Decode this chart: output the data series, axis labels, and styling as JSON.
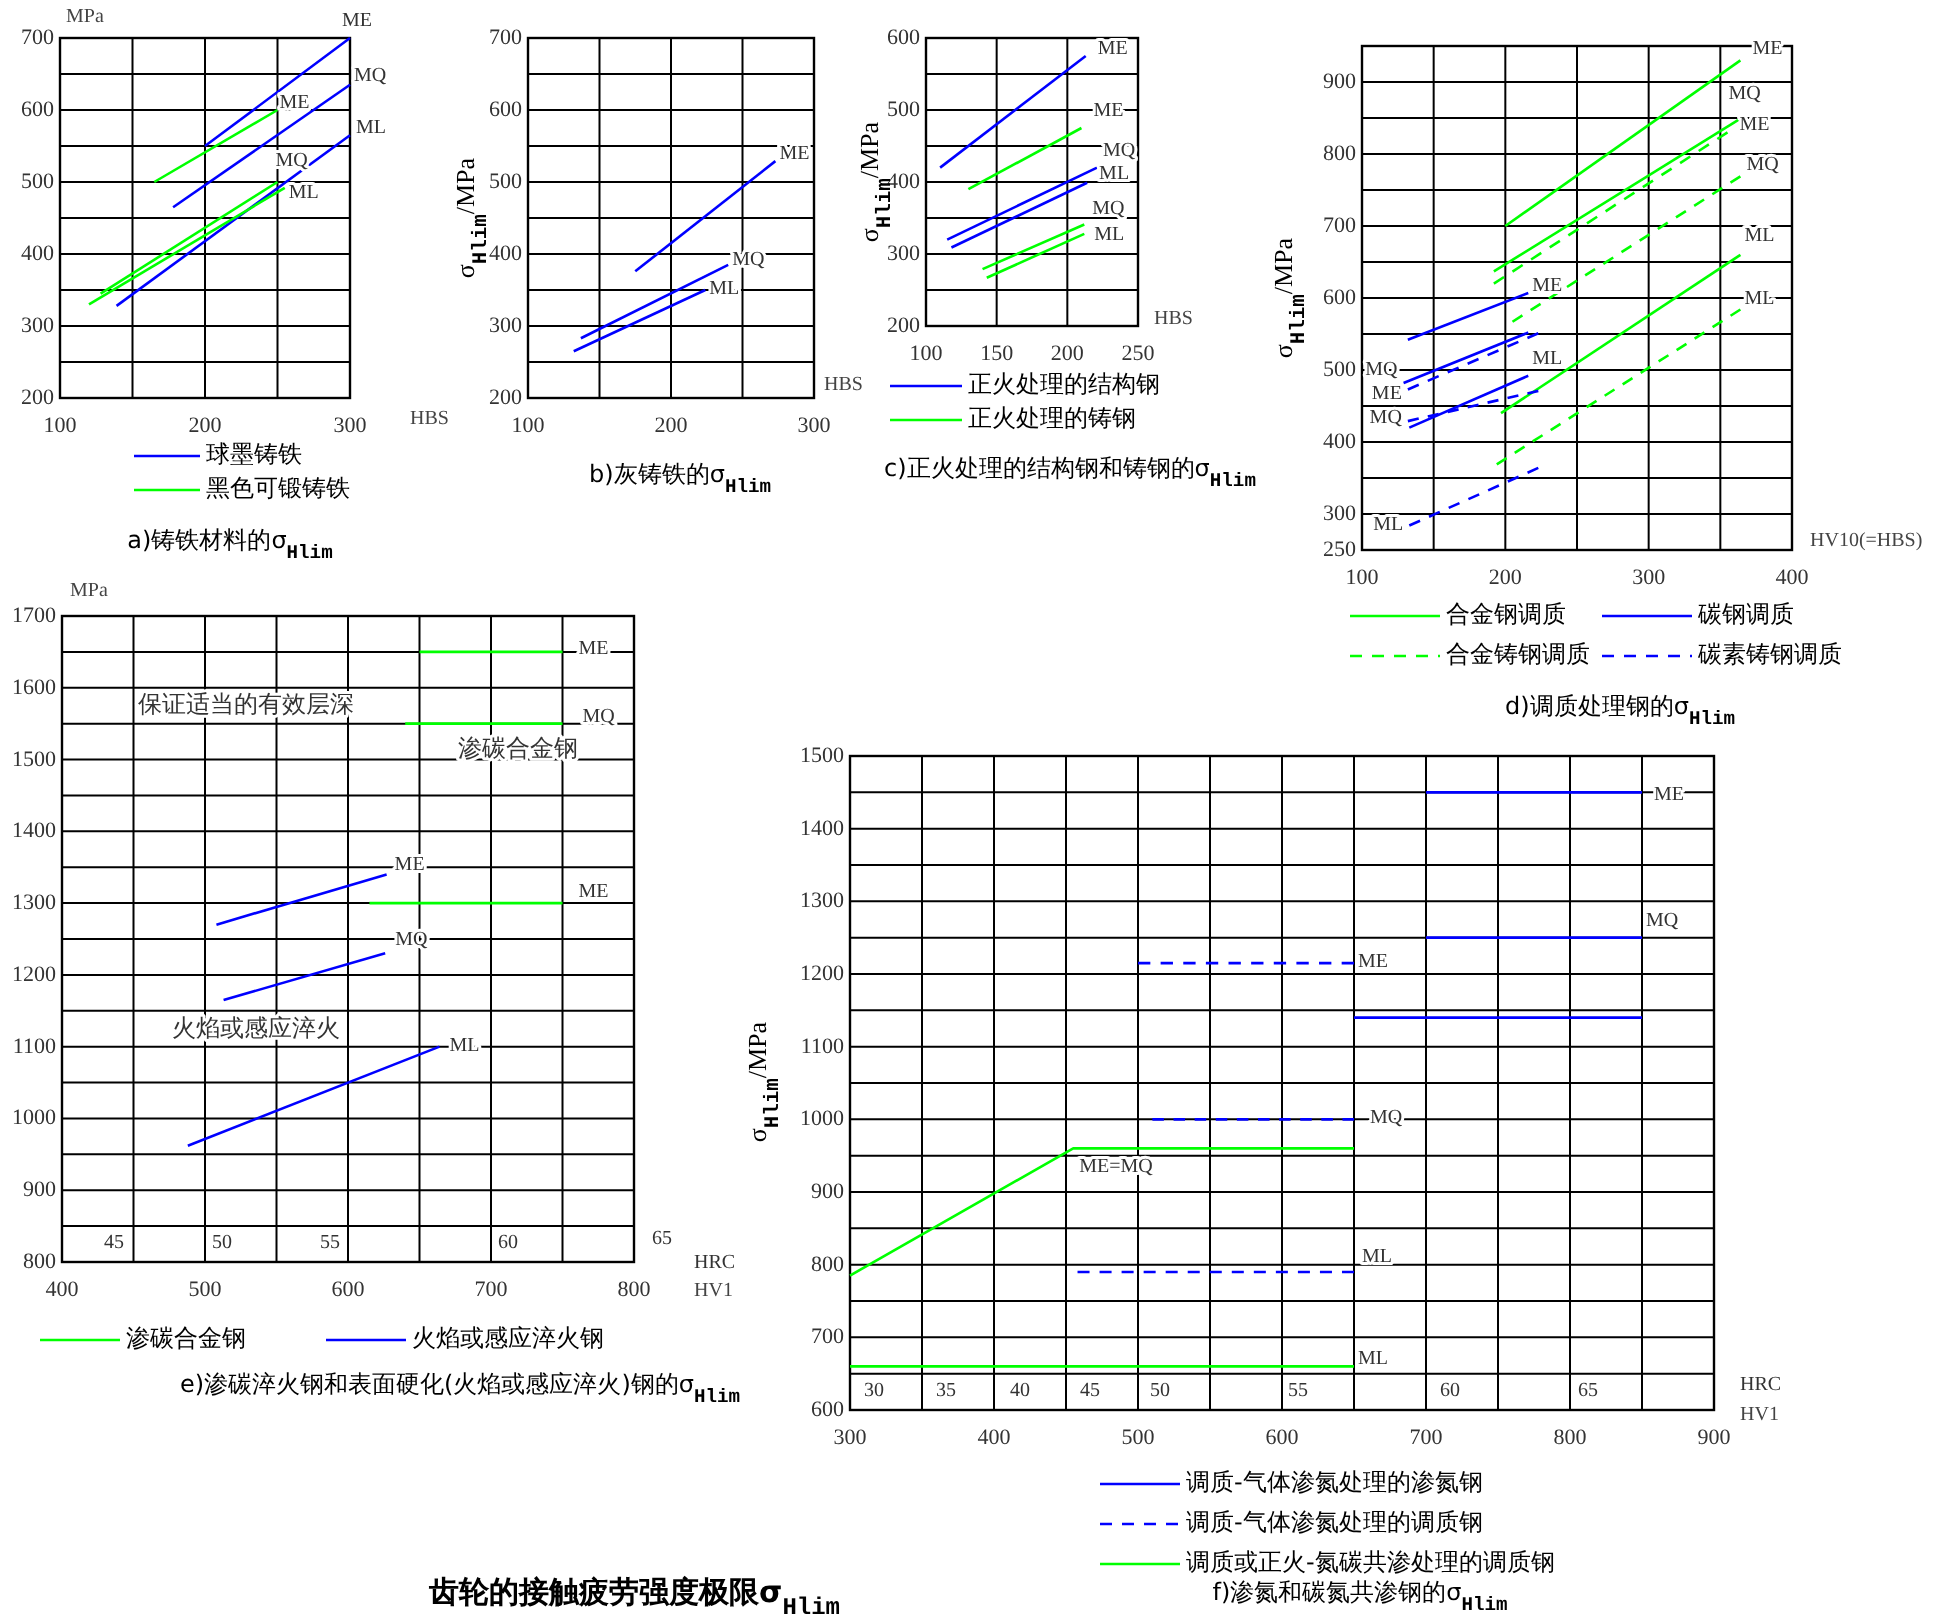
{
  "chart_data": [
    {
      "type": "line",
      "title": "a)铸铁材料的σ$_{Hlim}$",
      "xlabel": "HBS",
      "ylabel": "MPa",
      "xlim": [
        100,
        300
      ],
      "ylim": [
        200,
        700
      ],
      "xticks": [
        100,
        {
          "value": 150,
          "label": null
        },
        200,
        {
          "value": 250,
          "label": null
        },
        300
      ],
      "yticks": [
        200,
        {
          "value": 250,
          "label": null
        },
        300,
        {
          "value": 350,
          "label": null
        },
        400,
        {
          "value": 450,
          "label": null
        },
        500,
        {
          "value": 550,
          "label": null
        },
        600,
        {
          "value": 650,
          "label": null
        },
        700
      ],
      "grid": true,
      "legend": "bottom",
      "series": [
        {
          "name": "球墨铸铁",
          "color": "#0000ff",
          "x": [
            200,
            300
          ],
          "values": [
            550,
            700
          ]
        },
        {
          "color": "#0000ff",
          "x": [
            178,
            300
          ],
          "values": [
            465,
            635
          ]
        },
        {
          "color": "#0000ff",
          "x": [
            139,
            300
          ],
          "values": [
            328,
            565
          ]
        },
        {
          "name": "黑色可锻铸铁",
          "color": "#00ff00",
          "x": [
            165,
            250
          ],
          "values": [
            500,
            600
          ]
        },
        {
          "color": "#00ff00",
          "x": [
            128,
            250
          ],
          "values": [
            345,
            500
          ]
        },
        {
          "color": "#00ff00",
          "x": [
            120,
            255
          ],
          "values": [
            330,
            492
          ]
        }
      ],
      "annotations": [
        "ME",
        "MQ",
        "ML",
        "ME",
        "MQ",
        "ML"
      ]
    },
    {
      "type": "line",
      "title": "b)灰铸铁的σ$_{Hlim}$",
      "xlabel": "HBS",
      "ylabel": "σ$_{Hlim}$/MPa",
      "xlim": [
        100,
        300
      ],
      "ylim": [
        200,
        700
      ],
      "xticks": [
        100,
        {
          "value": 150,
          "label": null
        },
        200,
        {
          "value": 250,
          "label": null
        },
        300
      ],
      "yticks": [
        200,
        {
          "value": 250,
          "label": null
        },
        300,
        {
          "value": 350,
          "label": null
        },
        400,
        {
          "value": 450,
          "label": null
        },
        500,
        {
          "value": 550,
          "label": null
        },
        600,
        {
          "value": 650,
          "label": null
        },
        700
      ],
      "grid": true,
      "series": [
        {
          "color": "#0000ff",
          "x": [
            175,
            273
          ],
          "values": [
            376,
            529
          ]
        },
        {
          "color": "#0000ff",
          "x": [
            137,
            240
          ],
          "values": [
            283,
            385
          ]
        },
        {
          "color": "#0000ff",
          "x": [
            132,
            224
          ],
          "values": [
            265,
            350
          ]
        }
      ],
      "annotations": [
        "ME",
        "MQ",
        "ML"
      ]
    },
    {
      "type": "line",
      "title": "c)正火处理的结构钢和铸钢的σ$_{Hlim}$",
      "xlabel": "HBS",
      "ylabel": "σ$_{Hlim}$/MPa",
      "xlim": [
        100,
        250
      ],
      "ylim": [
        200,
        600
      ],
      "xticks": [
        100,
        150,
        200,
        250
      ],
      "yticks": [
        200,
        {
          "value": 250,
          "label": null
        },
        300,
        {
          "value": 350,
          "label": null
        },
        400,
        {
          "value": 450,
          "label": null
        },
        500,
        {
          "value": 550,
          "label": null
        },
        600
      ],
      "grid": true,
      "legend": "bottom",
      "series": [
        {
          "name": "正火处理的结构钢",
          "color": "#0000ff",
          "x": [
            110,
            213
          ],
          "values": [
            420,
            575
          ]
        },
        {
          "color": "#0000ff",
          "x": [
            115,
            221
          ],
          "values": [
            320,
            420
          ]
        },
        {
          "color": "#0000ff",
          "x": [
            118,
            214
          ],
          "values": [
            309,
            399
          ]
        },
        {
          "name": "正火处理的铸钢",
          "color": "#00ff00",
          "x": [
            130,
            210
          ],
          "values": [
            390,
            475
          ]
        },
        {
          "color": "#00ff00",
          "x": [
            140,
            212
          ],
          "values": [
            279,
            341
          ]
        },
        {
          "color": "#00ff00",
          "x": [
            143,
            212
          ],
          "values": [
            267,
            328
          ]
        }
      ],
      "annotations": [
        "ME",
        "ME",
        "MQ",
        "ML",
        "MQ",
        "ML"
      ]
    },
    {
      "type": "line",
      "title": "d)调质处理钢的σ$_{Hlim}$",
      "xlabel": "HV10(=HBS)",
      "ylabel": "σ$_{Hlim}$/MPa",
      "xlim": [
        100,
        400
      ],
      "ylim": [
        250,
        950
      ],
      "xticks": [
        100,
        {
          "value": 150,
          "label": null
        },
        200,
        {
          "value": 250,
          "label": null
        },
        300,
        {
          "value": 350,
          "label": null
        },
        400
      ],
      "yticks": [
        250,
        300,
        {
          "value": 350,
          "label": null
        },
        400,
        {
          "value": 450,
          "label": null
        },
        500,
        {
          "value": 550,
          "label": null
        },
        600,
        {
          "value": 650,
          "label": null
        },
        700,
        {
          "value": 750,
          "label": null
        },
        800,
        {
          "value": 850,
          "label": null
        },
        900,
        {
          "value": 950,
          "label": null
        }
      ],
      "grid": true,
      "legend": "bottom",
      "series": [
        {
          "name": "合金钢调质",
          "color": "#00ff00",
          "x": [
            200,
            364
          ],
          "values": [
            700,
            930
          ]
        },
        {
          "name": "碳钢调质",
          "color": "#0000ff",
          "x": [
            132,
            216
          ],
          "values": [
            542,
            607
          ]
        },
        {
          "name": "合金铸钢调质",
          "color": "#00ff00",
          "line_style": "dashed",
          "x": [
            192,
            355
          ],
          "values": [
            620,
            830
          ]
        },
        {
          "name": "碳素铸钢调质",
          "color": "#0000ff",
          "line_style": "dashed",
          "x": [
            132,
            223
          ],
          "values": [
            473,
            551
          ]
        },
        {
          "color": "#00ff00",
          "x": [
            192,
            364
          ],
          "values": [
            637,
            849
          ]
        },
        {
          "color": "#00ff00",
          "x": [
            197,
            364
          ],
          "values": [
            440,
            660
          ]
        },
        {
          "color": "#00ff00",
          "line_style": "dashed",
          "x": [
            205,
            364
          ],
          "values": [
            567,
            769
          ]
        },
        {
          "color": "#00ff00",
          "line_style": "dashed",
          "x": [
            194,
            364
          ],
          "values": [
            369,
            584
          ]
        },
        {
          "color": "#0000ff",
          "x": [
            129,
            216
          ],
          "values": [
            482,
            552
          ]
        },
        {
          "color": "#0000ff",
          "x": [
            133,
            216
          ],
          "values": [
            420,
            492
          ]
        },
        {
          "color": "#0000ff",
          "line_style": "dashed",
          "x": [
            132,
            223
          ],
          "values": [
            429,
            471
          ]
        },
        {
          "color": "#0000ff",
          "line_style": "dashed",
          "x": [
            133,
            223
          ],
          "values": [
            284,
            364
          ]
        }
      ],
      "annotations": [
        "ME",
        "MQ",
        "ME",
        "MQ",
        "ML",
        "ML",
        "ME",
        "ML",
        "MQ",
        "ME",
        "MQ",
        "ML"
      ]
    },
    {
      "type": "line",
      "title": "e)渗碳淬火钢和表面硬化(火焰或感应淬火)钢的σ$_{Hlim}$",
      "xlabel": "HV1",
      "ylabel": "MPa",
      "xlim": [
        400,
        800
      ],
      "ylim": [
        800,
        1700
      ],
      "xticks": [
        400,
        {
          "value": 450,
          "label": null
        },
        500,
        {
          "value": 550,
          "label": null
        },
        600,
        {
          "value": 650,
          "label": null
        },
        700,
        {
          "value": 750,
          "label": null
        },
        800
      ],
      "yticks": [
        800,
        {
          "value": 850,
          "label": null
        },
        900,
        {
          "value": 950,
          "label": null
        },
        1000,
        {
          "value": 1050,
          "label": null
        },
        1100,
        {
          "value": 1150,
          "label": null
        },
        1200,
        {
          "value": 1250,
          "label": null
        },
        1300,
        {
          "value": 1350,
          "label": null
        },
        1400,
        {
          "value": 1450,
          "label": null
        },
        1500,
        {
          "value": 1550,
          "label": null
        },
        1600,
        {
          "value": 1650,
          "label": null
        },
        1700
      ],
      "grid": true,
      "legend": "bottom",
      "series": [
        {
          "name": "渗碳合金钢",
          "color": "#00ff00",
          "x": [
            650,
            750
          ],
          "values": [
            1650,
            1650
          ]
        },
        {
          "name": "火焰或感应淬火钢",
          "color": "#0000ff",
          "x": [
            508,
            627
          ],
          "values": [
            1270,
            1340
          ]
        },
        {
          "color": "#00ff00",
          "x": [
            640,
            750
          ],
          "values": [
            1550,
            1550
          ]
        },
        {
          "color": "#00ff00",
          "x": [
            615,
            750
          ],
          "values": [
            1300,
            1300
          ]
        },
        {
          "color": "#0000ff",
          "x": [
            513,
            626
          ],
          "values": [
            1165,
            1230
          ]
        },
        {
          "color": "#0000ff",
          "x": [
            488,
            664
          ],
          "values": [
            962,
            1100
          ]
        }
      ],
      "annotations": [
        "保证适当的有效层深",
        "渗碳合金钢",
        "火焰或感应淬火",
        "ME",
        "MQ",
        "ML",
        "ME",
        "MQ",
        "ME",
        "45",
        "50",
        "55",
        "60",
        "65",
        "HRC"
      ]
    },
    {
      "type": "line",
      "title": "f)渗氮和碳氮共渗钢的σ$_{Hlim}$",
      "xlabel": "HV1",
      "ylabel": "σ$_{Hlim}$/MPa",
      "xlim": [
        300,
        900
      ],
      "ylim": [
        600,
        1500
      ],
      "xticks": [
        300,
        {
          "value": 350,
          "label": null
        },
        400,
        {
          "value": 450,
          "label": null
        },
        500,
        {
          "value": 550,
          "label": null
        },
        600,
        {
          "value": 650,
          "label": null
        },
        700,
        {
          "value": 750,
          "label": null
        },
        800,
        {
          "value": 850,
          "label": null
        },
        900
      ],
      "yticks": [
        600,
        {
          "value": 650,
          "label": null
        },
        700,
        {
          "value": 750,
          "label": null
        },
        800,
        {
          "value": 850,
          "label": null
        },
        900,
        {
          "value": 950,
          "label": null
        },
        1000,
        {
          "value": 1050,
          "label": null
        },
        1100,
        {
          "value": 1150,
          "label": null
        },
        1200,
        {
          "value": 1250,
          "label": null
        },
        1300,
        {
          "value": 1350,
          "label": null
        },
        1400,
        {
          "value": 1450,
          "label": null
        },
        1500
      ],
      "grid": true,
      "legend": "bottom",
      "series": [
        {
          "name": "调质-气体渗氮处理的渗氮钢",
          "color": "#0000ff",
          "x": [
            700,
            850
          ],
          "values": [
            1450,
            1450
          ]
        },
        {
          "name": "调质-气体渗氮处理的调质钢",
          "color": "#0000ff",
          "line_style": "dashed",
          "x": [
            500,
            650
          ],
          "values": [
            1215,
            1215
          ]
        },
        {
          "name": "调质或正火-氮碳共渗处理的调质钢",
          "color": "#00ff00",
          "x": [
            300,
            455,
            650
          ],
          "values": [
            785,
            960,
            960
          ]
        },
        {
          "color": "#0000ff",
          "x": [
            700,
            850
          ],
          "values": [
            1250,
            1250
          ]
        },
        {
          "color": "#0000ff",
          "x": [
            650,
            850
          ],
          "values": [
            1140,
            1140
          ]
        },
        {
          "color": "#0000ff",
          "line_style": "dashed",
          "x": [
            510,
            650
          ],
          "values": [
            1000,
            1000
          ]
        },
        {
          "color": "#0000ff",
          "line_style": "dashed",
          "x": [
            458,
            650
          ],
          "values": [
            790,
            790
          ]
        },
        {
          "color": "#00ff00",
          "x": [
            300,
            650
          ],
          "values": [
            660,
            660
          ]
        }
      ],
      "annotations": [
        "ME",
        "MQ",
        "ME",
        "MQ",
        "ME=MQ",
        "ML",
        "ML",
        "30",
        "35",
        "40",
        "45",
        "50",
        "55",
        "60",
        "65",
        "HRC",
        "齿轮的接触疲劳强度极限σ$_{Hlim}$"
      ]
    }
  ]
}
